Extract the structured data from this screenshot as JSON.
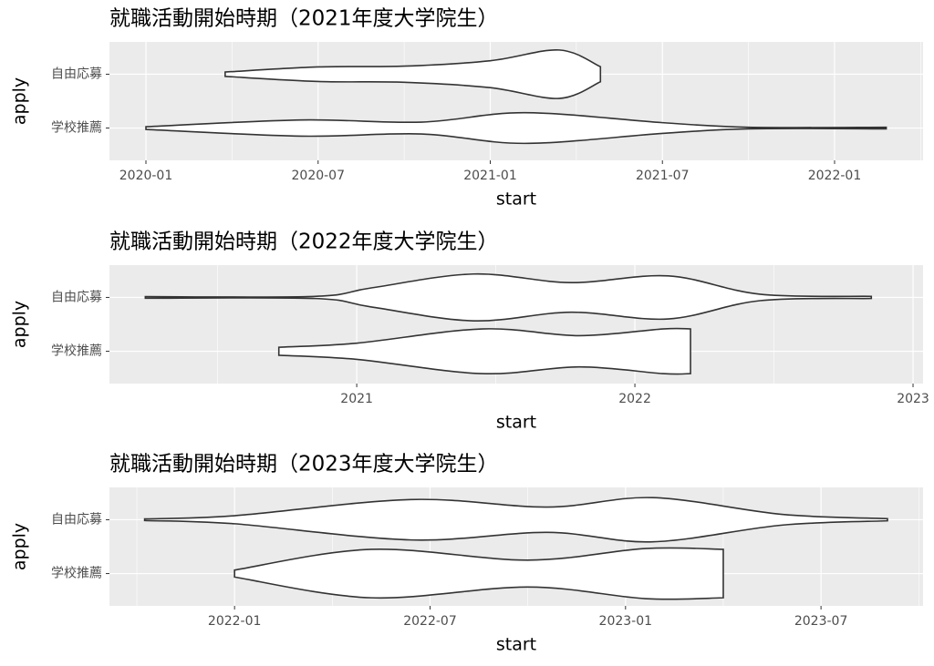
{
  "chart_data": [
    {
      "type": "violin",
      "title": "就職活動開始時期（2021年度大学院生）",
      "xlabel": "start",
      "ylabel": "apply",
      "categories": [
        "自由応募",
        "学校推薦"
      ],
      "violins": [
        {
          "x": [
            2020.23,
            2020.5,
            2020.75,
            2021.0,
            2021.2,
            2021.32
          ],
          "density": [
            0.08,
            0.27,
            0.3,
            0.5,
            0.9,
            0.28
          ]
        },
        {
          "x": [
            2020.0,
            2020.45,
            2020.8,
            2021.1,
            2021.5,
            2021.75,
            2022.15
          ],
          "density": [
            0.05,
            0.3,
            0.22,
            0.57,
            0.2,
            0.03,
            0.03
          ]
        }
      ],
      "xlim": [
        2019.894,
        2022.257
      ],
      "xticks": [
        {
          "value": 2020.0,
          "label": "2020-01"
        },
        {
          "value": 2020.5,
          "label": "2020-07"
        },
        {
          "value": 2021.0,
          "label": "2021-01"
        },
        {
          "value": 2021.5,
          "label": "2021-07"
        },
        {
          "value": 2022.0,
          "label": "2022-01"
        }
      ],
      "grid": true,
      "minor_grid": true,
      "color": "#ffffff",
      "edge_color": "#333333"
    },
    {
      "type": "violin",
      "title": "就職活動開始時期（2022年度大学院生）",
      "xlabel": "start",
      "ylabel": "apply",
      "categories": [
        "自由応募",
        "学校推薦"
      ],
      "violins": [
        {
          "x": [
            2020.24,
            2020.85,
            2021.05,
            2021.42,
            2021.77,
            2022.12,
            2022.45,
            2022.85
          ],
          "density": [
            0.03,
            0.04,
            0.35,
            0.87,
            0.55,
            0.8,
            0.12,
            0.04
          ]
        },
        {
          "x": [
            2020.72,
            2021.0,
            2021.45,
            2021.8,
            2022.1,
            2022.2
          ],
          "density": [
            0.15,
            0.3,
            0.83,
            0.58,
            0.83,
            0.83
          ]
        }
      ],
      "xlim": [
        2020.111,
        2023.036
      ],
      "xticks": [
        2021,
        2022,
        2023
      ],
      "grid": true,
      "minor_grid": true,
      "color": "#ffffff",
      "edge_color": "#333333"
    },
    {
      "type": "violin",
      "title": "就職活動開始時期（2023年度大学院生）",
      "xlabel": "start",
      "ylabel": "apply",
      "categories": [
        "自由応募",
        "学校推薦"
      ],
      "violins": [
        {
          "x": [
            2021.77,
            2022.0,
            2022.45,
            2022.8,
            2023.07,
            2023.4,
            2023.67
          ],
          "density": [
            0.03,
            0.15,
            0.75,
            0.47,
            0.82,
            0.2,
            0.04
          ]
        },
        {
          "x": [
            2022.0,
            2022.35,
            2022.75,
            2023.05,
            2023.25
          ],
          "density": [
            0.13,
            0.9,
            0.5,
            0.93,
            0.9
          ]
        }
      ],
      "xlim": [
        2021.68,
        2023.761
      ],
      "xticks": [
        {
          "value": 2022.0,
          "label": "2022-01"
        },
        {
          "value": 2022.5,
          "label": "2022-07"
        },
        {
          "value": 2023.0,
          "label": "2023-01"
        },
        {
          "value": 2023.5,
          "label": "2023-07"
        }
      ],
      "grid": true,
      "minor_grid": true,
      "color": "#ffffff",
      "edge_color": "#333333"
    }
  ]
}
